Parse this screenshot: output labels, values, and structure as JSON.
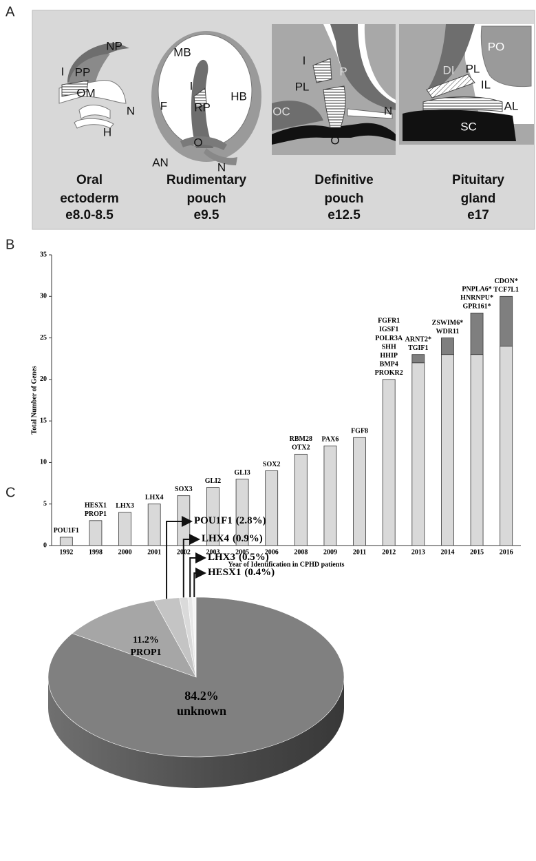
{
  "panel_labels": [
    "A",
    "B",
    "C"
  ],
  "diagram": {
    "stages": [
      {
        "caption": [
          "Oral",
          "ectoderm",
          "e8.0-8.5"
        ],
        "parts": [
          "NP",
          "I",
          "PP",
          "OM",
          "N",
          "H"
        ]
      },
      {
        "caption": [
          "Rudimentary",
          "pouch",
          "e9.5"
        ],
        "parts": [
          "MB",
          "F",
          "I",
          "RP",
          "HB",
          "O",
          "AN",
          "N"
        ]
      },
      {
        "caption": [
          "Definitive",
          "pouch",
          "e12.5"
        ],
        "parts": [
          "I",
          "P",
          "PL",
          "OC",
          "N",
          "O"
        ]
      },
      {
        "caption": [
          "Pituitary",
          "gland",
          "e17"
        ],
        "parts": [
          "PO",
          "DI",
          "PL",
          "IL",
          "AL",
          "SC"
        ]
      }
    ]
  },
  "chart_data": [
    {
      "type": "bar",
      "stacked": true,
      "y_label": "Total Number of Genes",
      "x_label": "Year of Identification in CPHD patients",
      "categories": [
        "1992",
        "1998",
        "2000",
        "2001",
        "2002",
        "2003",
        "2005",
        "2006",
        "2008",
        "2009",
        "2011",
        "2012",
        "2013",
        "2014",
        "2015",
        "2016"
      ],
      "series": [
        {
          "color": "#d9d9d9",
          "values": [
            1,
            3,
            4,
            5,
            6,
            7,
            8,
            9,
            11,
            12,
            13,
            20,
            22,
            23,
            23,
            24
          ]
        },
        {
          "color": "#7f7f7f",
          "values": [
            0,
            0,
            0,
            0,
            0,
            0,
            0,
            0,
            0,
            0,
            0,
            0,
            1,
            2,
            5,
            6
          ]
        }
      ],
      "annotations": [
        [
          "POU1F1"
        ],
        [
          "HESX1",
          "PROP1"
        ],
        [
          "LHX3"
        ],
        [
          "LHX4"
        ],
        [
          "SOX3"
        ],
        [
          "GLI2"
        ],
        [
          "GLI3"
        ],
        [
          "SOX2"
        ],
        [
          "RBM28",
          "OTX2"
        ],
        [
          "PAX6"
        ],
        [
          "FGF8"
        ],
        [
          "FGFR1",
          "IGSF1",
          "POLR3A",
          "SHH",
          "HHIP",
          "BMP4",
          "PROKR2"
        ],
        [
          "ARNT2*",
          "TGIF1"
        ],
        [
          "ZSWIM6*",
          "WDR11"
        ],
        [
          "PNPLA6*",
          "HNRNPU*",
          "GPR161*"
        ],
        [
          "CDON*",
          "TCF7L1"
        ]
      ],
      "ylim": [
        0,
        35
      ],
      "yticks": [
        0,
        5,
        10,
        15,
        20,
        25,
        30,
        35
      ]
    },
    {
      "type": "pie",
      "three_d": true,
      "categories": [
        "unknown",
        "PROP1",
        "POU1F1",
        "LHX4",
        "LHX3",
        "HESX1"
      ],
      "values": [
        84.2,
        11.2,
        2.8,
        0.9,
        0.5,
        0.4
      ],
      "value_labels": [
        "84.2%",
        "11.2%",
        "(2.8%)",
        "(0.9%)",
        "(0.5%)",
        "(0.4%)"
      ],
      "colors": [
        "#808080",
        "#a6a6a6",
        "#c4c4c4",
        "#dadada",
        "#e8e8e8",
        "#f4f4f4"
      ]
    }
  ]
}
